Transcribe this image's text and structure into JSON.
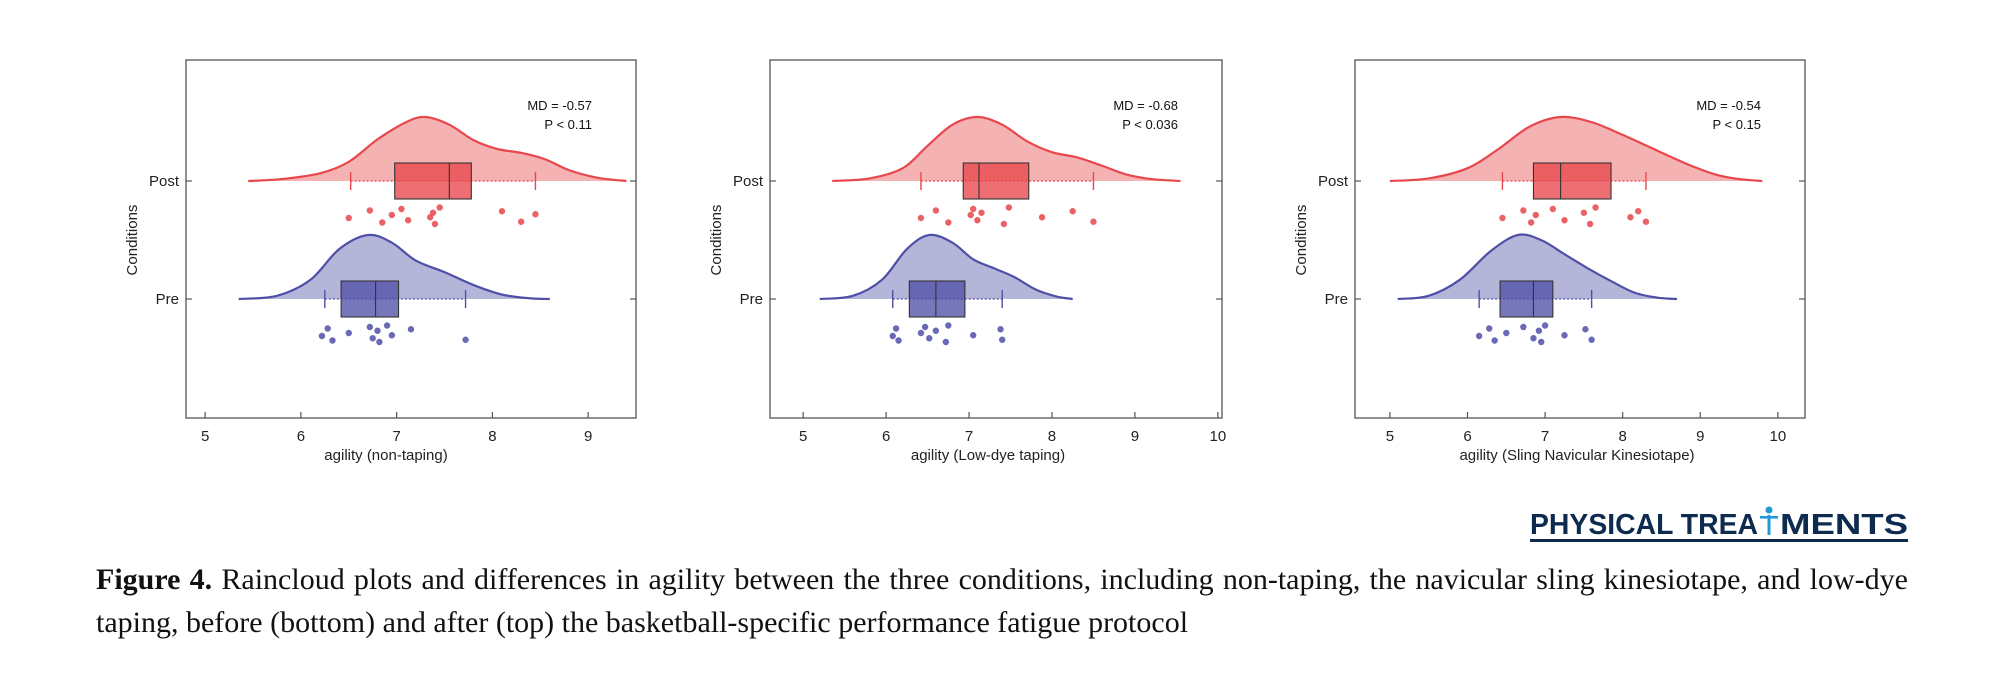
{
  "chart_data": [
    {
      "type": "raincloud",
      "xlabel": "agility (non-taping)",
      "ylabel": "Conditions",
      "xlim": [
        4.8,
        9.5
      ],
      "xticks": [
        5,
        6,
        7,
        8,
        9
      ],
      "annotation": {
        "md": "MD = -0.57",
        "p": "P < 0.11"
      },
      "series": [
        {
          "name": "Post",
          "color": "#e8474b",
          "points": [
            6.5,
            6.72,
            6.85,
            6.95,
            7.05,
            7.12,
            7.38,
            7.4,
            7.45,
            7.35,
            8.1,
            8.3,
            8.45
          ],
          "box": {
            "q1": 6.98,
            "median": 7.55,
            "q3": 7.78
          },
          "whiskers": [
            6.52,
            8.45
          ],
          "density": [
            [
              5.45,
              0
            ],
            [
              5.8,
              0.03
            ],
            [
              6.2,
              0.12
            ],
            [
              6.5,
              0.3
            ],
            [
              6.8,
              0.65
            ],
            [
              7.1,
              0.92
            ],
            [
              7.3,
              1.0
            ],
            [
              7.55,
              0.88
            ],
            [
              7.8,
              0.64
            ],
            [
              8.05,
              0.5
            ],
            [
              8.3,
              0.44
            ],
            [
              8.55,
              0.34
            ],
            [
              8.8,
              0.17
            ],
            [
              9.1,
              0.05
            ],
            [
              9.4,
              0
            ]
          ]
        },
        {
          "name": "Pre",
          "color": "#4f4fa8",
          "points": [
            6.22,
            6.28,
            6.33,
            6.5,
            6.72,
            6.75,
            6.8,
            6.82,
            6.9,
            6.95,
            7.15,
            7.72
          ],
          "box": {
            "q1": 6.42,
            "median": 6.78,
            "q3": 7.02
          },
          "whiskers": [
            6.25,
            7.72
          ],
          "density": [
            [
              5.35,
              0
            ],
            [
              5.75,
              0.05
            ],
            [
              6.1,
              0.3
            ],
            [
              6.4,
              0.78
            ],
            [
              6.7,
              1.0
            ],
            [
              6.95,
              0.88
            ],
            [
              7.2,
              0.6
            ],
            [
              7.5,
              0.42
            ],
            [
              7.8,
              0.22
            ],
            [
              8.1,
              0.07
            ],
            [
              8.4,
              0.01
            ],
            [
              8.6,
              0
            ]
          ]
        }
      ]
    },
    {
      "type": "raincloud",
      "xlabel": "agility (Low-dye taping)",
      "ylabel": "Conditions",
      "xlim": [
        4.6,
        10.05
      ],
      "xticks": [
        5,
        6,
        7,
        8,
        9,
        10
      ],
      "annotation": {
        "md": "MD = -0.68",
        "p": "P < 0.036"
      },
      "series": [
        {
          "name": "Post",
          "color": "#e8474b",
          "points": [
            6.42,
            6.6,
            6.75,
            7.02,
            7.05,
            7.1,
            7.15,
            7.42,
            7.48,
            7.88,
            8.25,
            8.5
          ],
          "box": {
            "q1": 6.93,
            "median": 7.12,
            "q3": 7.72
          },
          "whiskers": [
            6.42,
            8.5
          ],
          "density": [
            [
              5.35,
              0
            ],
            [
              5.8,
              0.04
            ],
            [
              6.2,
              0.2
            ],
            [
              6.5,
              0.55
            ],
            [
              6.8,
              0.88
            ],
            [
              7.1,
              1.0
            ],
            [
              7.4,
              0.88
            ],
            [
              7.7,
              0.62
            ],
            [
              8.0,
              0.45
            ],
            [
              8.3,
              0.37
            ],
            [
              8.6,
              0.24
            ],
            [
              8.9,
              0.1
            ],
            [
              9.2,
              0.03
            ],
            [
              9.55,
              0
            ]
          ]
        },
        {
          "name": "Pre",
          "color": "#4f4fa8",
          "points": [
            6.08,
            6.12,
            6.15,
            6.42,
            6.47,
            6.52,
            6.6,
            6.72,
            6.75,
            7.05,
            7.38,
            7.4
          ],
          "box": {
            "q1": 6.28,
            "median": 6.6,
            "q3": 6.95
          },
          "whiskers": [
            6.08,
            7.4
          ],
          "density": [
            [
              5.2,
              0
            ],
            [
              5.6,
              0.05
            ],
            [
              5.95,
              0.3
            ],
            [
              6.25,
              0.78
            ],
            [
              6.52,
              1.0
            ],
            [
              6.8,
              0.88
            ],
            [
              7.05,
              0.62
            ],
            [
              7.3,
              0.48
            ],
            [
              7.55,
              0.34
            ],
            [
              7.8,
              0.15
            ],
            [
              8.05,
              0.04
            ],
            [
              8.25,
              0
            ]
          ]
        }
      ]
    },
    {
      "type": "raincloud",
      "xlabel": "agility (Sling Navicular Kinesiotape)",
      "ylabel": "Conditions",
      "xlim": [
        4.55,
        10.35
      ],
      "xticks": [
        5,
        6,
        7,
        8,
        9,
        10
      ],
      "annotation": {
        "md": "MD = -0.54",
        "p": "P < 0.15"
      },
      "series": [
        {
          "name": "Post",
          "color": "#e8474b",
          "points": [
            6.45,
            6.72,
            6.82,
            6.88,
            7.1,
            7.25,
            7.5,
            7.58,
            7.65,
            8.1,
            8.2,
            8.3
          ],
          "box": {
            "q1": 6.85,
            "median": 7.2,
            "q3": 7.85
          },
          "whiskers": [
            6.45,
            8.3
          ],
          "density": [
            [
              5.0,
              0
            ],
            [
              5.5,
              0.04
            ],
            [
              6.0,
              0.2
            ],
            [
              6.4,
              0.5
            ],
            [
              6.8,
              0.85
            ],
            [
              7.2,
              1.0
            ],
            [
              7.6,
              0.92
            ],
            [
              8.0,
              0.72
            ],
            [
              8.4,
              0.5
            ],
            [
              8.8,
              0.28
            ],
            [
              9.2,
              0.1
            ],
            [
              9.5,
              0.03
            ],
            [
              9.8,
              0
            ]
          ]
        },
        {
          "name": "Pre",
          "color": "#4f4fa8",
          "points": [
            6.15,
            6.28,
            6.35,
            6.5,
            6.72,
            6.85,
            6.92,
            6.95,
            7.0,
            7.25,
            7.52,
            7.6
          ],
          "box": {
            "q1": 6.42,
            "median": 6.85,
            "q3": 7.1
          },
          "whiskers": [
            6.15,
            7.6
          ],
          "density": [
            [
              5.1,
              0
            ],
            [
              5.5,
              0.05
            ],
            [
              5.9,
              0.3
            ],
            [
              6.3,
              0.75
            ],
            [
              6.65,
              1.0
            ],
            [
              6.95,
              0.92
            ],
            [
              7.25,
              0.7
            ],
            [
              7.55,
              0.48
            ],
            [
              7.85,
              0.28
            ],
            [
              8.15,
              0.1
            ],
            [
              8.45,
              0.02
            ],
            [
              8.7,
              0
            ]
          ]
        }
      ]
    }
  ],
  "logo": {
    "text_left": "PHYSICAL TREA",
    "text_right": "MENTS",
    "color": "#0d2a4f",
    "accent": "#1f9bd7",
    "icon": "person-icon"
  },
  "caption": {
    "label": "Figure 4.",
    "text": " Raincloud plots and differences in agility between the three conditions, including non-taping, the navicular sling kinesiotape, and low-dye taping, before (bottom) and after (top) the basketball-specific performance fatigue protocol"
  }
}
